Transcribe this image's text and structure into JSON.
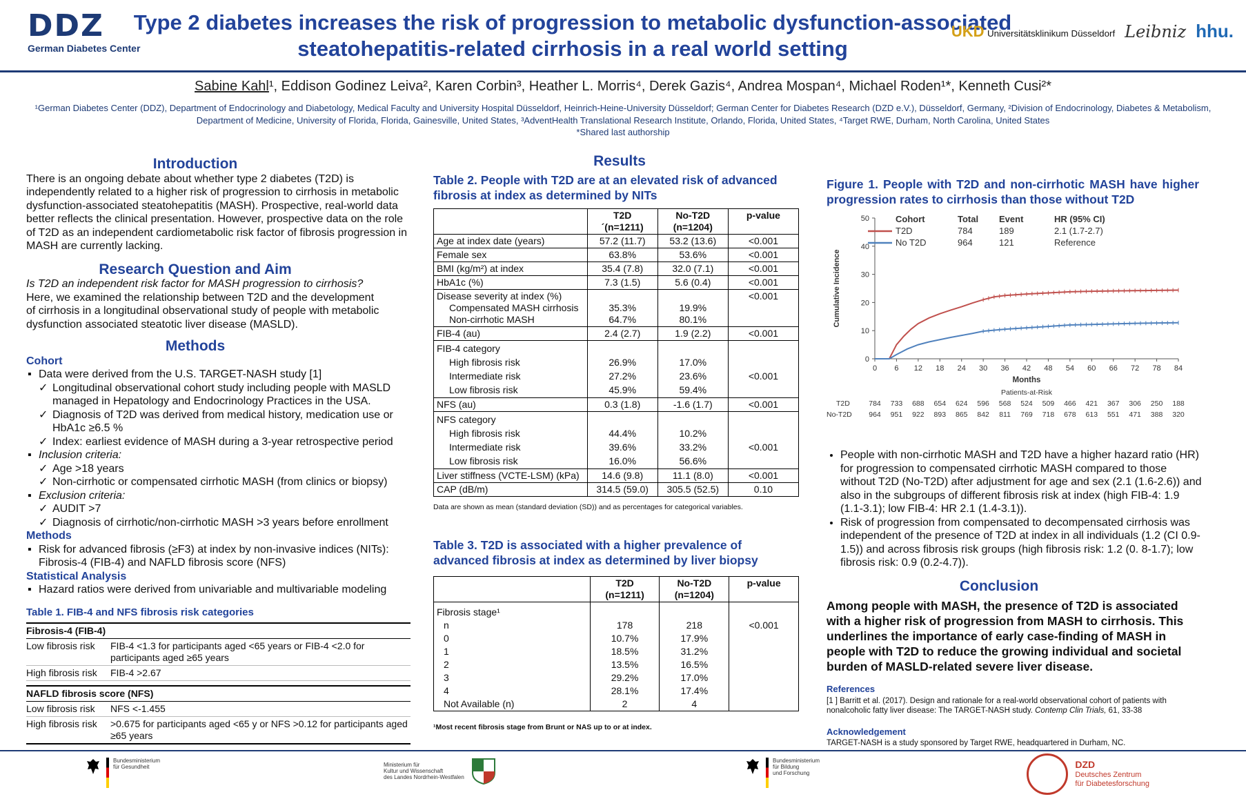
{
  "header": {
    "ddz_logo": "DDZ",
    "ddz_subtitle": "German Diabetes Center",
    "title_line1": "Type 2 diabetes increases the risk of progression to metabolic dysfunction-associated",
    "title_line2": "steatohepatitis-related cirrhosis in a real world setting",
    "ukd_logo": "UKD",
    "ukd_subtitle": "Universitätsklinikum Düsseldorf",
    "leibniz_logo": "Leibniz",
    "hhu_logo": "hhu."
  },
  "authors": {
    "first_author": "Sabine Kahl",
    "rest": "¹, Eddison Godinez Leiva², Karen Corbin³, Heather L. Morris⁴, Derek Gazis⁴, Andrea Mospan⁴, Michael Roden¹*, Kenneth Cusi²*",
    "affiliation_line1": "¹German Diabetes Center (DDZ), Department of Endocrinology and Diabetology, Medical Faculty and University Hospital Düsseldorf, Heinrich-Heine-University Düsseldorf; German Center for Diabetes Research (DZD e.V.), Düsseldorf, Germany, ²Division of Endocrinology, Diabetes & Metabolism,",
    "affiliation_line2": "Department of Medicine, University of Florida, Florida, Gainesville, United States, ³AdventHealth Translational Research Institute, Orlando, Florida, United States, ⁴Target RWE, Durham, North Carolina, United States",
    "shared": "*Shared last authorship"
  },
  "introduction": {
    "title": "Introduction",
    "text": "There is an ongoing debate about whether type 2 diabetes (T2D) is independently related to a higher risk of progression to cirrhosis in metabolic dysfunction-associated steatohepatitis (MASH). Prospective, real-world data better reflects the clinical presentation. However, prospective data on the role of T2D as an independent cardiometabolic risk factor of fibrosis progression in MASH are currently lacking."
  },
  "research": {
    "title": "Research Question and Aim",
    "question": "Is T2D an independent risk factor for MASH progression to cirrhosis?",
    "aim": "Here, we examined the relationship between T2D and the development of cirrhosis in a longitudinal observational study of people with metabolic dysfunction associated steatotic liver disease (MASLD)."
  },
  "methods": {
    "title": "Methods",
    "cohort_title": "Cohort",
    "cohort_b1": "Data were derived from the U.S. TARGET-NASH study [1]",
    "cohort_c1": "Longitudinal observational cohort study including people with MASLD managed in Hepatology and Endocrinology Practices in the USA.",
    "cohort_c2": "Diagnosis of T2D was derived from medical history, medication use or HbA1c ≥6.5 %",
    "cohort_c3": "Index: earliest evidence of MASH during a 3-year retrospective period",
    "inclusion_title": "Inclusion criteria:",
    "inclusion_c1": "Age >18 years",
    "inclusion_c2": "Non-cirrhotic or compensated cirrhotic MASH (from clinics or biopsy)",
    "exclusion_title": "Exclusion criteria:",
    "exclusion_c1": "AUDIT >7",
    "exclusion_c2": "Diagnosis of cirrhotic/non-cirrhotic MASH >3 years before enrollment",
    "methods_sub": "Methods",
    "methods_b1": "Risk for advanced fibrosis (≥F3) at index by non-invasive indices  (NITs): Fibrosis-4 (FIB-4) and NAFLD fibrosis score (NFS)",
    "stat_title": "Statistical Analysis",
    "stat_b1": "Hazard ratios were derived from univariable and multivariable modeling"
  },
  "table1": {
    "caption": "Table 1. FIB-4 and NFS fibrosis risk categories",
    "group1": "Fibrosis-4 (FIB-4)",
    "g1_low_k": "Low fibrosis risk",
    "g1_low_v": "FIB-4 <1.3 for participants aged <65 years or FIB-4 <2.0 for participants aged ≥65 years",
    "g1_high_k": "High fibrosis risk",
    "g1_high_v": "FIB-4 >2.67",
    "group2": "NAFLD fibrosis score (NFS)",
    "g2_low_k": "Low fibrosis risk",
    "g2_low_v": "NFS <-1.455",
    "g2_high_k": "High fibrosis risk",
    "g2_high_v": ">0.675 for participants aged <65 y or NFS >0.12 for participants aged ≥65 years"
  },
  "results": {
    "title": "Results",
    "table2_caption": "Table 2. People with T2D are at an elevated risk of advanced fibrosis at index as determined by NITs",
    "t2_h_t2d": "T2D",
    "t2_h_t2d_n": "´(n=1211)",
    "t2_h_not2d": "No-T2D",
    "t2_h_not2d_n": "(n=1204)",
    "t2_h_p": "p-value",
    "t2_rows": [
      {
        "label": "Age at index date (years)",
        "a": "57.2 (11.7)",
        "b": "53.2 (13.6)",
        "p": "<0.001"
      },
      {
        "label": "Female sex",
        "a": "63.8%",
        "b": "53.6%",
        "p": "<0.001"
      },
      {
        "label": "BMI (kg/m²) at index",
        "a": "35.4 (7.8)",
        "b": "32.0 (7.1)",
        "p": "<0.001"
      },
      {
        "label": "HbA1c (%)",
        "a": "7.3 (1.5)",
        "b": "5.6 (0.4)",
        "p": "<0.001"
      }
    ],
    "t2_sev_label": "Disease severity at index (%)",
    "t2_sev_p": "<0.001",
    "t2_sev_c_label": "Compensated MASH cirrhosis",
    "t2_sev_c_a": "35.3%",
    "t2_sev_c_b": "19.9%",
    "t2_sev_n_label": "Non-cirrhotic MASH",
    "t2_sev_n_a": "64.7%",
    "t2_sev_n_b": "80.1%",
    "t2_fib4_label": "FIB-4 (au)",
    "t2_fib4_a": "2.4 (2.7)",
    "t2_fib4_b": "1.9 (2.2)",
    "t2_fib4_p": "<0.001",
    "t2_fib4cat_label": "FIB-4 category",
    "t2_fib4cat_rows": [
      {
        "label": "High fibrosis risk",
        "a": "26.9%",
        "b": "17.0%"
      },
      {
        "label": "Intermediate risk",
        "a": "27.2%",
        "b": "23.6%"
      },
      {
        "label": "Low fibrosis risk",
        "a": "45.9%",
        "b": "59.4%"
      }
    ],
    "t2_fib4cat_p": "<0.001",
    "t2_nfs_label": "NFS (au)",
    "t2_nfs_a": "0.3 (1.8)",
    "t2_nfs_b": "-1.6 (1.7)",
    "t2_nfs_p": "<0.001",
    "t2_nfscat_label": "NFS category",
    "t2_nfscat_rows": [
      {
        "label": "High fibrosis risk",
        "a": "44.4%",
        "b": "10.2%"
      },
      {
        "label": "Intermediate risk",
        "a": "39.6%",
        "b": "33.2%"
      },
      {
        "label": "Low fibrosis risk",
        "a": "16.0%",
        "b": "56.6%"
      }
    ],
    "t2_nfscat_p": "<0.001",
    "t2_ls_label": "Liver stiffness (VCTE-LSM) (kPa)",
    "t2_ls_a": "14.6 (9.8)",
    "t2_ls_b": "11.1 (8.0)",
    "t2_ls_p": "<0.001",
    "t2_cap_label": "CAP (dB/m)",
    "t2_cap_a": "314.5 (59.0)",
    "t2_cap_b": "305.5 (52.5)",
    "t2_cap_p": "0.10",
    "t2_footnote": "Data are shown as mean (standard deviation (SD)) and as percentages for categorical variables.",
    "table3_caption": "Table 3. T2D is associated with a higher prevalence of advanced fibrosis at index as determined by liver biopsy",
    "t3_h_t2d": "T2D",
    "t3_h_t2d_n": "(n=1211)",
    "t3_h_not2d": "No-T2D",
    "t3_h_not2d_n": "(n=1204)",
    "t3_h_p": "p-value",
    "t3_stage_label": "Fibrosis stage¹",
    "t3_rows": [
      {
        "label": "n",
        "a": "178",
        "b": "218",
        "p": "<0.001"
      },
      {
        "label": "0",
        "a": "10.7%",
        "b": "17.9%",
        "p": ""
      },
      {
        "label": "1",
        "a": "18.5%",
        "b": "31.2%",
        "p": ""
      },
      {
        "label": "2",
        "a": "13.5%",
        "b": "16.5%",
        "p": ""
      },
      {
        "label": "3",
        "a": "29.2%",
        "b": "17.0%",
        "p": ""
      },
      {
        "label": "4",
        "a": "28.1%",
        "b": "17.4%",
        "p": ""
      },
      {
        "label": "Not Available (n)",
        "a": "2",
        "b": "4",
        "p": ""
      }
    ],
    "t3_footnote": "¹Most recent fibrosis stage from Brunt or NAS up to or at index."
  },
  "figure1": {
    "caption": "Figure 1. People with T2D and non-cirrhotic MASH have higher progression rates to cirrhosis than those without T2D",
    "legend_h_cohort": "Cohort",
    "legend_h_total": "Total",
    "legend_h_event": "Event",
    "legend_h_hr": "HR (95% CI)",
    "legend_t2d_name": "T2D",
    "legend_t2d_total": "784",
    "legend_t2d_event": "189",
    "legend_t2d_hr": "2.1 (1.7-2.7)",
    "legend_not2d_name": "No T2D",
    "legend_not2d_total": "964",
    "legend_not2d_event": "121",
    "legend_not2d_hr": "Reference",
    "par_title": "Patients-at-Risk",
    "par_t2d_label": "T2D",
    "par_not2d_label": "No-T2D",
    "par_t2d": [
      "784",
      "733",
      "688",
      "654",
      "624",
      "596",
      "568",
      "524",
      "509",
      "466",
      "421",
      "367",
      "306",
      "250",
      "188"
    ],
    "par_not2d": [
      "964",
      "951",
      "922",
      "893",
      "865",
      "842",
      "811",
      "769",
      "718",
      "678",
      "613",
      "551",
      "471",
      "388",
      "320"
    ]
  },
  "chart_data": {
    "type": "line",
    "title": "",
    "xlabel": "Months",
    "ylabel": "Cumulative Incidence",
    "xlim": [
      0,
      84
    ],
    "ylim": [
      0,
      50
    ],
    "x_ticks": [
      0,
      6,
      12,
      18,
      24,
      30,
      36,
      42,
      48,
      54,
      60,
      66,
      72,
      78,
      84
    ],
    "y_ticks": [
      0,
      10,
      20,
      30,
      40,
      50
    ],
    "grid": false,
    "series": [
      {
        "name": "T2D",
        "color": "#c0504d",
        "x": [
          0,
          4,
          6,
          8,
          10,
          12,
          15,
          18,
          21,
          24,
          27,
          30,
          33,
          36,
          42,
          48,
          54,
          60,
          66,
          72,
          78,
          84
        ],
        "y": [
          0,
          0,
          5,
          8,
          10.5,
          12.5,
          14.5,
          16,
          17.3,
          18.5,
          19.8,
          21,
          22,
          22.5,
          23,
          23.4,
          23.8,
          24,
          24.1,
          24.2,
          24.3,
          24.4
        ]
      },
      {
        "name": "No T2D",
        "color": "#4f81bd",
        "x": [
          0,
          4,
          6,
          9,
          12,
          15,
          18,
          21,
          24,
          27,
          30,
          36,
          42,
          48,
          54,
          60,
          66,
          72,
          78,
          84
        ],
        "y": [
          0,
          0,
          1.5,
          3.5,
          5,
          6,
          6.8,
          7.6,
          8.3,
          9,
          9.8,
          10.5,
          11,
          11.5,
          12,
          12.2,
          12.4,
          12.6,
          12.7,
          12.8
        ]
      }
    ]
  },
  "findings": {
    "b1": "People with non-cirrhotic MASH and T2D have a higher hazard ratio (HR) for progression to compensated cirrhotic MASH compared to those without T2D (No-T2D) after adjustment for age and sex (2.1 (1.6-2.6)) and also in the subgroups of different fibrosis risk at index (high FIB-4: 1.9 (1.1-3.1); low FIB-4: HR 2.1 (1.4-3.1)).",
    "b2": "Risk of progression from compensated to decompensated cirrhosis was independent of the presence of T2D at index in all individuals (1.2 (CI 0.9-1.5)) and across fibrosis risk groups (high fibrosis risk: 1.2 (0. 8-1.7); low fibrosis risk: 0.9 (0.2-4.7))."
  },
  "conclusion": {
    "title": "Conclusion",
    "text": "Among people with MASH, the presence of T2D is associated with a higher risk of progression from MASH to cirrhosis. This underlines the importance of early case-finding of MASH in people with T2D to reduce the growing individual and societal burden of MASLD-related severe liver disease.",
    "refs_title": "References",
    "ref1_a": "[1 ] Barritt et al. (2017). Design and rationale for a real-world observational cohort of patients with nonalcoholic fatty liver disease: The TARGET-NASH study. ",
    "ref1_journal": "Contemp Clin Trials,",
    "ref1_b": " 61, 33-38",
    "ack_title": "Acknowledgement",
    "ack_text": "TARGET-NASH is a study sponsored by Target RWE, headquartered in Durham, NC."
  },
  "footer": {
    "bmg_l1": "Bundesministerium",
    "bmg_l2": "für Gesundheit",
    "nrw_l1": "Ministerium für",
    "nrw_l2": "Kultur und Wissenschaft",
    "nrw_l3": "des Landes Nordrhein-Westfalen",
    "bmbf_l1": "Bundesministerium",
    "bmbf_l2": "für Bildung",
    "bmbf_l3": "und Forschung",
    "dzd_l1": "DZD",
    "dzd_l2": "Deutsches Zentrum",
    "dzd_l3": "für Diabetesforschung"
  }
}
